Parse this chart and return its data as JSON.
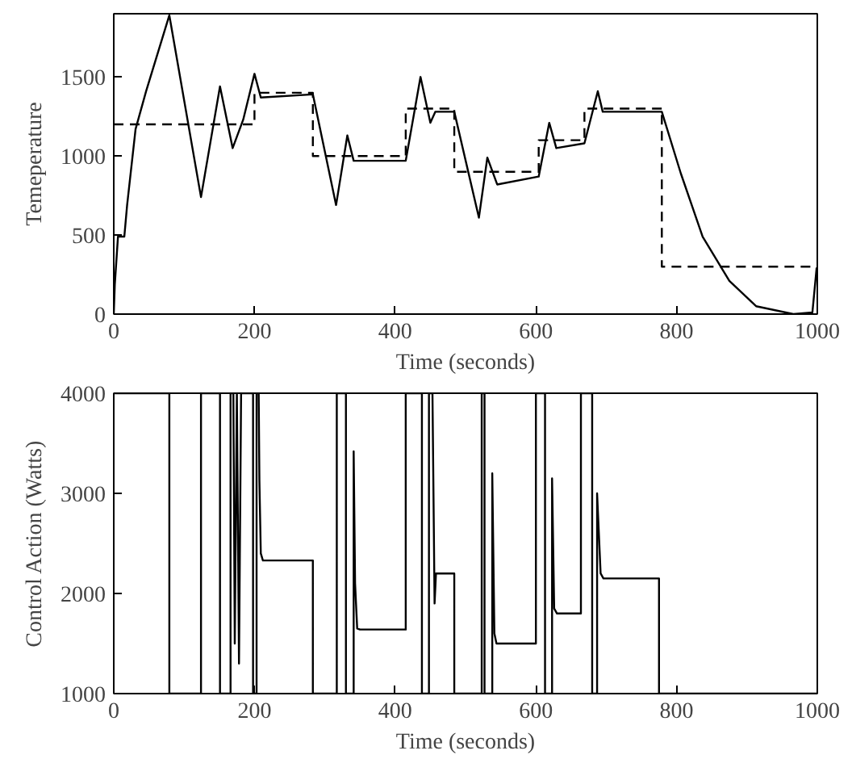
{
  "chart_data": [
    {
      "type": "line",
      "xlabel": "Time (seconds)",
      "ylabel": "Temeperature",
      "xlim": [
        0,
        1000
      ],
      "ylim": [
        0,
        1900
      ],
      "xticks": [
        0,
        200,
        400,
        600,
        800,
        1000
      ],
      "yticks": [
        0,
        500,
        1000,
        1500
      ],
      "series": [
        {
          "color": "#000000",
          "line_style": "solid",
          "x": [
            0,
            1.5,
            6,
            15,
            19,
            31,
            46,
            79,
            124,
            151,
            169,
            184,
            200,
            209,
            283,
            316,
            332,
            341,
            415,
            436,
            450,
            457,
            484,
            519,
            531,
            545,
            604,
            619,
            629,
            669,
            688,
            695,
            779,
            806,
            837,
            875,
            913,
            966,
            993,
            999,
            1000
          ],
          "values": [
            0,
            190,
            490,
            490,
            690,
            1170,
            1410,
            1890,
            740,
            1440,
            1050,
            1230,
            1520,
            1370,
            1390,
            690,
            1130,
            970,
            970,
            1500,
            1210,
            1280,
            1280,
            610,
            990,
            820,
            870,
            1210,
            1050,
            1080,
            1410,
            1280,
            1280,
            890,
            490,
            210,
            50,
            0,
            10,
            290,
            290
          ]
        },
        {
          "color": "#000000",
          "line_style": "dashed",
          "x": [
            0,
            200,
            200,
            283,
            283,
            415,
            415,
            484,
            484,
            604,
            604,
            669,
            669,
            779,
            779,
            1000
          ],
          "values": [
            1200,
            1200,
            1400,
            1400,
            1000,
            1000,
            1300,
            1300,
            900,
            900,
            1100,
            1100,
            1300,
            1300,
            300,
            300
          ]
        }
      ]
    },
    {
      "type": "line",
      "xlabel": "Time (seconds)",
      "ylabel": "Control Action (Watts)",
      "xlim": [
        0,
        1000
      ],
      "ylim": [
        1000,
        4000
      ],
      "xticks": [
        0,
        200,
        400,
        600,
        800,
        1000
      ],
      "yticks": [
        1000,
        2000,
        3000,
        4000
      ],
      "series": [
        {
          "color": "#000000",
          "line_style": "solid",
          "x": [
            0,
            79,
            79,
            124,
            124,
            151,
            151,
            166,
            166,
            170,
            172,
            175,
            178,
            181,
            198,
            198,
            203,
            203,
            206,
            207,
            209,
            212,
            283,
            283,
            317,
            317,
            330,
            330,
            341,
            341,
            343,
            346,
            350,
            415,
            415,
            438,
            438,
            448,
            448,
            453,
            455,
            456,
            458,
            484,
            484,
            523,
            523,
            527,
            527,
            538,
            538,
            541,
            544,
            600,
            600,
            613,
            613,
            623,
            623,
            626,
            630,
            664,
            664,
            680,
            680,
            687,
            687,
            692,
            696,
            775,
            775,
            1000
          ],
          "values": [
            4000,
            4000,
            1000,
            1000,
            4000,
            4000,
            1000,
            1000,
            4000,
            4000,
            1500,
            4000,
            1300,
            4000,
            4000,
            1000,
            1000,
            4000,
            4000,
            3130,
            2400,
            2330,
            2330,
            1000,
            1000,
            4000,
            4000,
            1000,
            1000,
            3420,
            2100,
            1650,
            1640,
            1640,
            4000,
            4000,
            1000,
            1000,
            4000,
            4000,
            2600,
            1900,
            2200,
            2200,
            1000,
            1000,
            4000,
            4000,
            1000,
            1000,
            3200,
            1600,
            1500,
            1500,
            4000,
            4000,
            1000,
            1000,
            3150,
            1850,
            1800,
            1800,
            4000,
            4000,
            1000,
            1000,
            3000,
            2200,
            2150,
            2150,
            1000,
            1000
          ]
        }
      ]
    }
  ]
}
